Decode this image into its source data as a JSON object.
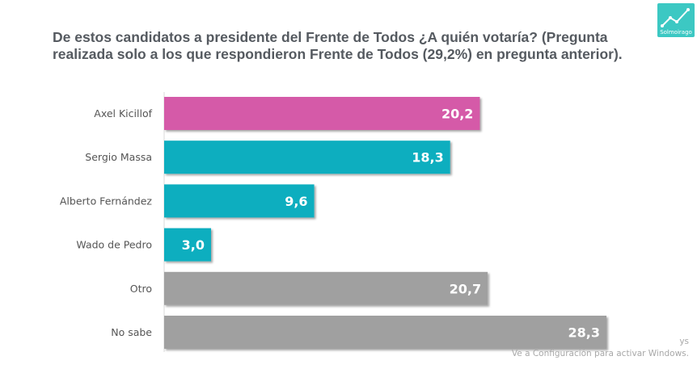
{
  "title": "De estos candidatos a presidente del Frente de Todos ¿A quién votaría? (Pregunta realizada solo a los que respondieron Frente de Todos (29,2%) en pregunta anterior).",
  "logo": {
    "icon": "trend-chart-icon",
    "text": "Solmoirago",
    "color": "#3cc8c3"
  },
  "watermark": {
    "line1": "ys",
    "line2": "Ve a Configuración para activar Windows."
  },
  "chart_data": {
    "type": "bar",
    "orientation": "horizontal",
    "categories": [
      "Axel Kicillof",
      "Sergio Massa",
      "Alberto Fernández",
      "Wado de Pedro",
      "Otro",
      "No sabe"
    ],
    "values": [
      20.2,
      18.3,
      9.6,
      3.0,
      20.7,
      28.3
    ],
    "value_labels": [
      "20,2",
      "18,3",
      "9,6",
      "3,0",
      "20,7",
      "28,3"
    ],
    "colors": [
      "#d55aa8",
      "#11aebf",
      "#11aebf",
      "#11aebf",
      "#a0a0a0",
      "#a0a0a0"
    ],
    "xlim": [
      0,
      28.3
    ],
    "grid": false,
    "legend": "none"
  }
}
